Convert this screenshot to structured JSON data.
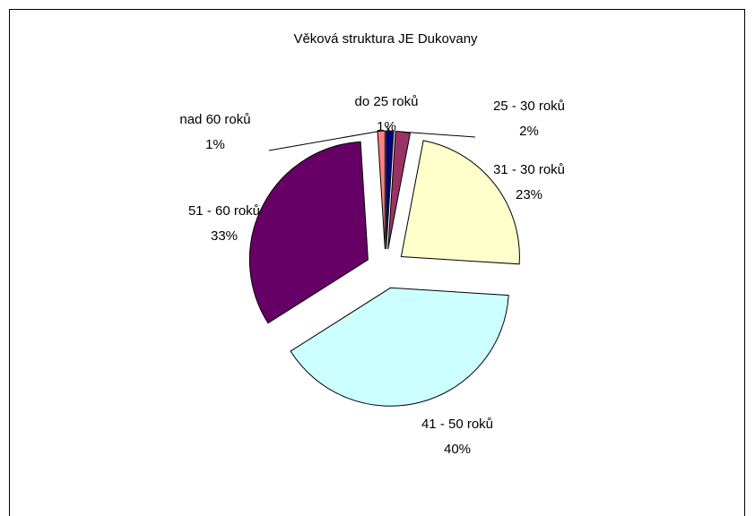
{
  "chart_data": {
    "type": "pie",
    "title": "Věková struktura JE Dukovany",
    "categories": [
      "do 25 roků",
      "25 - 30 roků",
      "31 - 30 roků",
      "41 - 50 roků",
      "51 - 60 roků",
      "nad 60 roků"
    ],
    "values": [
      1,
      2,
      23,
      40,
      33,
      1
    ],
    "value_labels": [
      "1%",
      "2%",
      "23%",
      "40%",
      "33%",
      "1%"
    ],
    "colors": [
      "#000080",
      "#993366",
      "#ffffcc",
      "#ccffff",
      "#660066",
      "#ff8080"
    ]
  }
}
